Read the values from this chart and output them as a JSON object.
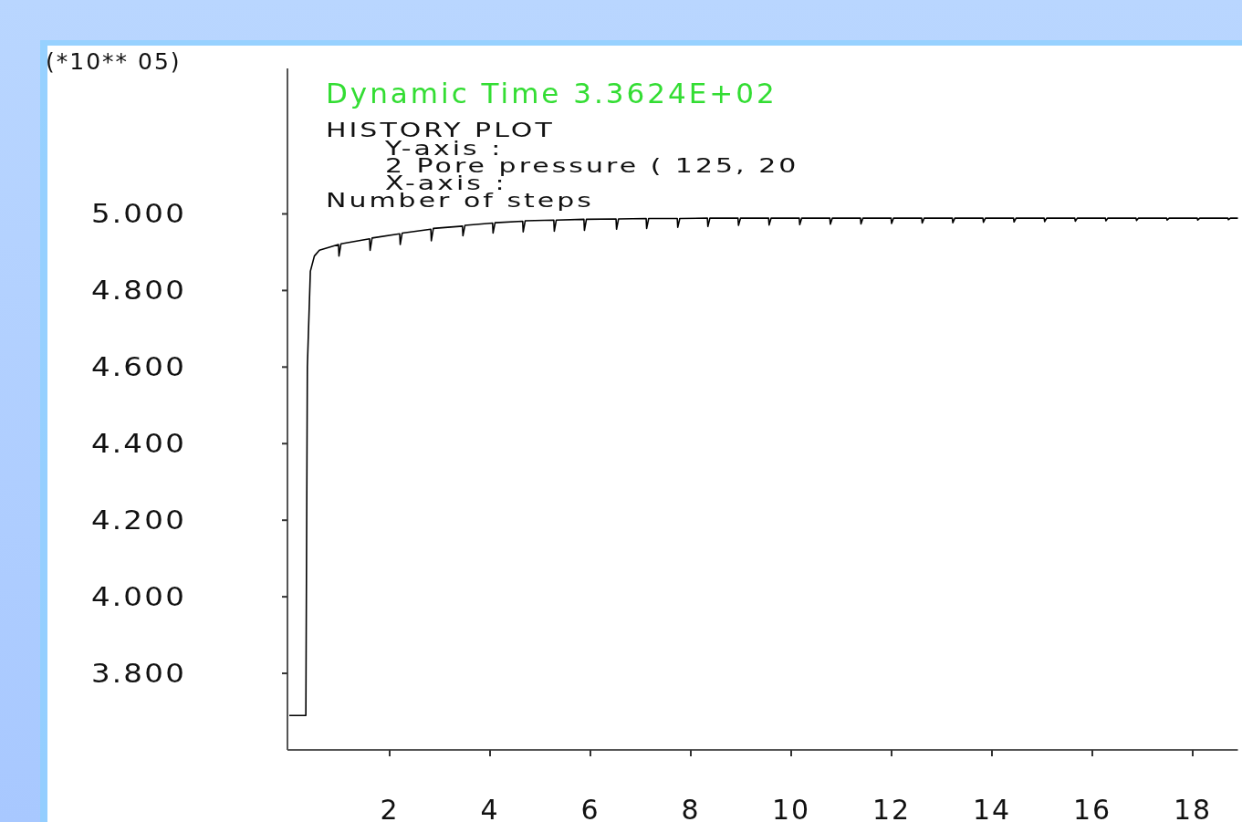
{
  "chart_data": {
    "type": "line",
    "title": "Dynamic Time   3.3624E+02",
    "ylabel": "(*10** 05)",
    "annotations": [
      "HISTORY PLOT",
      "Y-axis :",
      "2 Pore pressure ( 125,  20",
      "X-axis :",
      "Number of steps"
    ],
    "xlim": [
      0,
      18.9
    ],
    "xticks": [
      2,
      4,
      6,
      8,
      10,
      12,
      14,
      16,
      18
    ],
    "ylim": [
      3.6,
      5.38
    ],
    "yticks": [
      {
        "value": 3.8,
        "label": "3.800"
      },
      {
        "value": 4.0,
        "label": "4.000"
      },
      {
        "value": 4.2,
        "label": "4.200"
      },
      {
        "value": 4.4,
        "label": "4.400"
      },
      {
        "value": 4.6,
        "label": "4.600"
      },
      {
        "value": 4.8,
        "label": "4.800"
      },
      {
        "value": 5.0,
        "label": "5.000"
      }
    ],
    "grid": false,
    "marker": "none",
    "line_style": "solid",
    "series": [
      {
        "color": "#000000",
        "x": [
          0,
          0.33,
          0.36,
          0.42,
          0.5,
          0.6,
          0.98,
          0.99,
          1.03,
          1.6,
          1.61,
          1.65,
          2.2,
          2.21,
          2.25,
          2.82,
          2.83,
          2.87,
          3.45,
          3.46,
          3.5,
          4.05,
          4.06,
          4.1,
          4.65,
          4.66,
          4.7,
          5.27,
          5.28,
          5.32,
          5.87,
          5.88,
          5.92,
          6.51,
          6.52,
          6.56,
          7.11,
          7.12,
          7.16,
          7.73,
          7.74,
          7.78,
          8.33,
          8.34,
          8.38,
          8.94,
          8.95,
          8.99,
          9.55,
          9.56,
          9.6,
          10.16,
          10.17,
          10.21,
          10.77,
          10.78,
          10.82,
          11.38,
          11.39,
          11.43,
          11.99,
          12.0,
          12.04,
          12.6,
          12.61,
          12.65,
          13.21,
          13.22,
          13.26,
          13.82,
          13.83,
          13.87,
          14.43,
          14.44,
          14.48,
          15.04,
          15.05,
          15.09,
          15.65,
          15.66,
          15.7,
          16.26,
          16.27,
          16.31,
          16.87,
          16.88,
          16.92,
          17.48,
          17.49,
          17.53,
          18.09,
          18.1,
          18.14,
          18.7,
          18.71,
          18.75,
          18.9
        ],
        "values": [
          3.69,
          3.69,
          4.6,
          4.85,
          4.89,
          4.905,
          4.92,
          4.89,
          4.922,
          4.935,
          4.905,
          4.937,
          4.948,
          4.92,
          4.95,
          4.96,
          4.93,
          4.962,
          4.968,
          4.943,
          4.97,
          4.976,
          4.95,
          4.977,
          4.981,
          4.953,
          4.982,
          4.984,
          4.955,
          4.984,
          4.986,
          4.957,
          4.986,
          4.987,
          4.96,
          4.987,
          4.988,
          4.962,
          4.988,
          4.988,
          4.965,
          4.988,
          4.989,
          4.967,
          4.989,
          4.989,
          4.97,
          4.989,
          4.989,
          4.971,
          4.989,
          4.989,
          4.972,
          4.989,
          4.989,
          4.973,
          4.989,
          4.989,
          4.974,
          4.989,
          4.989,
          4.975,
          4.989,
          4.989,
          4.976,
          4.989,
          4.989,
          4.977,
          4.989,
          4.989,
          4.978,
          4.989,
          4.989,
          4.979,
          4.989,
          4.989,
          4.98,
          4.989,
          4.989,
          4.981,
          4.989,
          4.989,
          4.982,
          4.989,
          4.989,
          4.983,
          4.989,
          4.989,
          4.984,
          4.989,
          4.989,
          4.984,
          4.989,
          4.989,
          4.985,
          4.989,
          4.989
        ]
      }
    ]
  }
}
